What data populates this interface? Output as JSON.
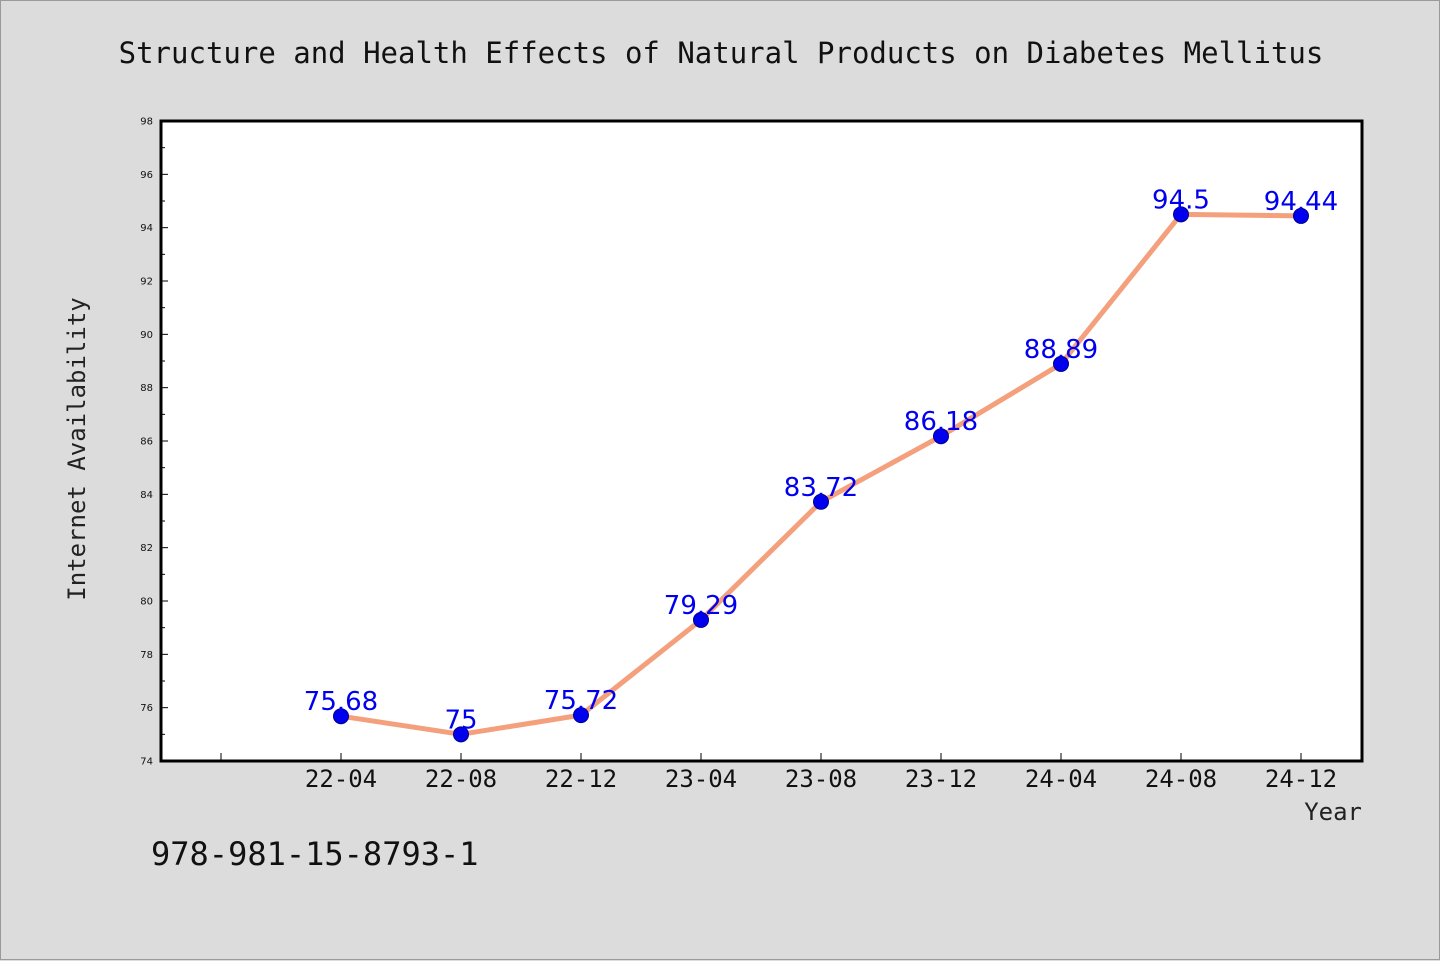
{
  "chart_data": {
    "type": "line",
    "title": "Structure and Health Effects of Natural Products on Diabetes Mellitus",
    "xlabel": "Year",
    "ylabel": "Internet Availability",
    "categories": [
      "22-04",
      "22-08",
      "22-12",
      "23-04",
      "23-08",
      "23-12",
      "24-04",
      "24-08",
      "24-12"
    ],
    "series": [
      {
        "values": [
          75.68,
          75,
          75.72,
          79.29,
          83.72,
          86.18,
          88.89,
          94.5,
          94.44
        ]
      }
    ],
    "ylim": [
      74,
      98
    ],
    "yticks": [
      74,
      76,
      78,
      80,
      82,
      84,
      86,
      88,
      90,
      92,
      94,
      96,
      98
    ],
    "grid": false,
    "data_labels": [
      "75.68",
      "75",
      "75.72",
      "79.29",
      "83.72",
      "86.18",
      "88.89",
      "94.5",
      "94.44"
    ],
    "colors": {
      "line": "#f4a07c",
      "marker": "#0000ee",
      "label": "#0000ee",
      "frame": "#000000"
    }
  },
  "footer": {
    "text": "978-981-15-8793-1"
  }
}
